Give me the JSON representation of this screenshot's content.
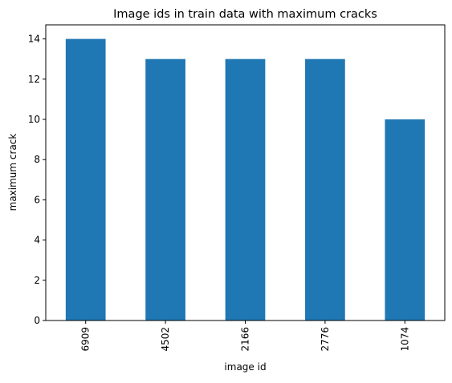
{
  "chart_data": {
    "type": "bar",
    "title": "Image ids in train data with maximum cracks",
    "xlabel": "image id",
    "ylabel": "maximum crack",
    "categories": [
      "6909",
      "4502",
      "2166",
      "2776",
      "1074"
    ],
    "values": [
      14,
      13,
      13,
      13,
      10
    ],
    "ylim": [
      0,
      14.7
    ],
    "yticks": [
      0,
      2,
      4,
      6,
      8,
      10,
      12,
      14
    ],
    "bar_color": "#1f77b4",
    "grid": false,
    "legend": false,
    "x_tick_rotation": "vertical"
  }
}
